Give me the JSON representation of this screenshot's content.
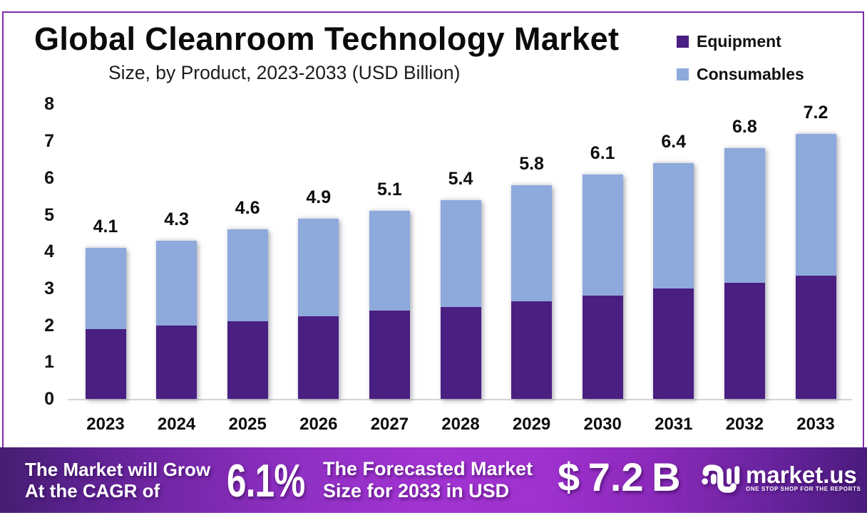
{
  "header": {
    "title": "Global Cleanroom Technology Market",
    "subtitle": "Size, by Product, 2023-2033 (USD Billion)"
  },
  "chart_data": {
    "type": "bar",
    "stacked": true,
    "title": "Global Cleanroom Technology Market",
    "subtitle": "Size, by Product, 2023-2033 (USD Billion)",
    "unit": "USD Billion",
    "categories": [
      "2023",
      "2024",
      "2025",
      "2026",
      "2027",
      "2028",
      "2029",
      "2030",
      "2031",
      "2032",
      "2033"
    ],
    "series": [
      {
        "name": "Equipment",
        "color": "#4a1f82",
        "values": [
          1.9,
          2.0,
          2.1,
          2.25,
          2.4,
          2.5,
          2.65,
          2.8,
          3.0,
          3.15,
          3.35
        ]
      },
      {
        "name": "Consumables",
        "color": "#8ea9db",
        "values": [
          2.2,
          2.3,
          2.5,
          2.65,
          2.7,
          2.9,
          3.15,
          3.3,
          3.4,
          3.65,
          3.85
        ]
      }
    ],
    "totals": [
      4.1,
      4.3,
      4.6,
      4.9,
      5.1,
      5.4,
      5.8,
      6.1,
      6.4,
      6.8,
      7.2
    ],
    "total_labels": [
      "4.1",
      "4.3",
      "4.6",
      "4.9",
      "5.1",
      "5.4",
      "5.8",
      "6.1",
      "6.4",
      "6.8",
      "7.2"
    ],
    "ylim": [
      0,
      8
    ],
    "yticks": [
      "0",
      "1",
      "2",
      "3",
      "4",
      "5",
      "6",
      "7",
      "8"
    ],
    "grid": false,
    "legend_position": "top-right"
  },
  "legend": {
    "items": [
      {
        "label": "Equipment",
        "color": "#4a1f82"
      },
      {
        "label": "Consumables",
        "color": "#8ea9db"
      }
    ]
  },
  "footer": {
    "cagr_label_line1": "The Market will Grow",
    "cagr_label_line2": "At the CAGR of",
    "cagr_value": "6.1%",
    "forecast_label_line1": "The Forecasted Market",
    "forecast_label_line2": "Size for 2033 in USD",
    "forecast_value": "$ 7.2 B",
    "brand": {
      "name": "market.us",
      "tagline": "ONE STOP SHOP FOR THE REPORTS"
    }
  },
  "colors": {
    "equipment": "#4a1f82",
    "consumables": "#8ea9db",
    "frame_border": "#7d2da9",
    "banner_gradient_left": "#471f73",
    "banner_gradient_center": "#a133d1",
    "banner_gradient_right": "#4e1c82",
    "axis_line": "#d4d4d4"
  }
}
